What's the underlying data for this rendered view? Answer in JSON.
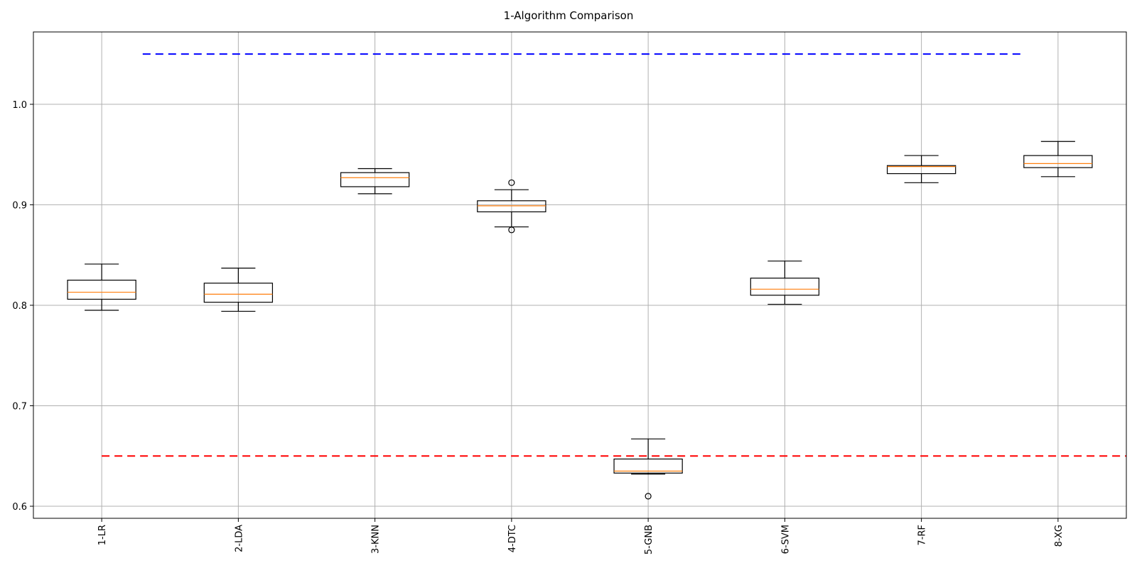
{
  "chart_data": {
    "type": "boxplot",
    "title": "1-Algorithm Comparison",
    "xlabel": "",
    "ylabel": "",
    "ylim": [
      0.588,
      1.072
    ],
    "yticks": [
      0.6,
      0.7,
      0.8,
      0.9,
      1.0
    ],
    "ytick_labels": [
      "0.6",
      "0.7",
      "0.8",
      "0.9",
      "1.0"
    ],
    "grid": true,
    "categories": [
      "1-LR",
      "2-LDA",
      "3-KNN",
      "4-DTC",
      "5-GNB",
      "6-SVM",
      "7-RF",
      "8-XG"
    ],
    "boxes": [
      {
        "label": "1-LR",
        "whisker_low": 0.795,
        "q1": 0.806,
        "median": 0.813,
        "q3": 0.825,
        "whisker_high": 0.841,
        "outliers": []
      },
      {
        "label": "2-LDA",
        "whisker_low": 0.794,
        "q1": 0.803,
        "median": 0.811,
        "q3": 0.822,
        "whisker_high": 0.837,
        "outliers": []
      },
      {
        "label": "3-KNN",
        "whisker_low": 0.911,
        "q1": 0.918,
        "median": 0.927,
        "q3": 0.932,
        "whisker_high": 0.936,
        "outliers": []
      },
      {
        "label": "4-DTC",
        "whisker_low": 0.878,
        "q1": 0.893,
        "median": 0.899,
        "q3": 0.904,
        "whisker_high": 0.915,
        "outliers": [
          0.875,
          0.922
        ]
      },
      {
        "label": "5-GNB",
        "whisker_low": 0.632,
        "q1": 0.633,
        "median": 0.635,
        "q3": 0.647,
        "whisker_high": 0.667,
        "outliers": [
          0.61
        ]
      },
      {
        "label": "6-SVM",
        "whisker_low": 0.801,
        "q1": 0.81,
        "median": 0.816,
        "q3": 0.827,
        "whisker_high": 0.844,
        "outliers": []
      },
      {
        "label": "7-RF",
        "whisker_low": 0.922,
        "q1": 0.931,
        "median": 0.938,
        "q3": 0.939,
        "whisker_high": 0.949,
        "outliers": []
      },
      {
        "label": "8-XG",
        "whisker_low": 0.928,
        "q1": 0.937,
        "median": 0.941,
        "q3": 0.949,
        "whisker_high": 0.963,
        "outliers": []
      }
    ],
    "reference_lines": [
      {
        "y": 1.05,
        "color": "#0000ff",
        "x_from": 1.3,
        "x_to": 7.75,
        "style": "dashed"
      },
      {
        "y": 0.65,
        "color": "#ff0000",
        "x_from": 1.0,
        "x_to": 8.5,
        "style": "dashed"
      }
    ],
    "colors": {
      "median": "#ff7f0e",
      "box": "#000000",
      "grid": "#b0b0b0"
    }
  }
}
